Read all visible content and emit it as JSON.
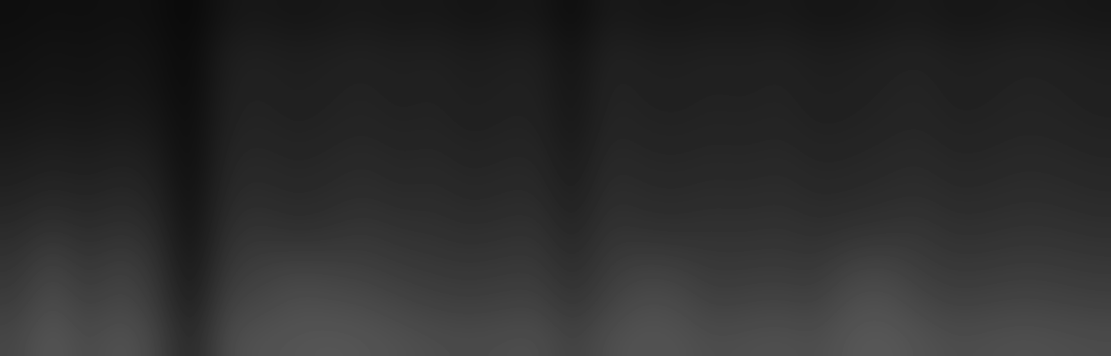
{
  "chart_data": {
    "type": "heatmap",
    "color": "gray",
    "tick_labels": false,
    "grid": false,
    "color_range": [
      0,
      255
    ],
    "cells": [
      [
        14,
        16,
        15,
        17,
        15,
        8,
        22,
        24,
        21,
        23,
        25,
        22,
        24,
        20,
        22,
        23,
        12,
        26,
        23,
        22,
        24,
        23,
        25,
        21,
        22,
        24,
        26,
        22,
        23,
        25,
        24,
        22
      ],
      [
        17,
        20,
        18,
        21,
        18,
        10,
        30,
        32,
        29,
        31,
        33,
        30,
        32,
        28,
        30,
        31,
        18,
        34,
        31,
        30,
        32,
        31,
        33,
        29,
        30,
        32,
        34,
        30,
        31,
        33,
        32,
        30
      ],
      [
        19,
        22,
        20,
        23,
        20,
        10,
        32,
        34,
        31,
        33,
        35,
        32,
        34,
        30,
        32,
        33,
        20,
        36,
        33,
        32,
        34,
        33,
        35,
        31,
        32,
        34,
        36,
        32,
        33,
        35,
        34,
        32
      ],
      [
        23,
        26,
        24,
        27,
        24,
        12,
        34,
        36,
        33,
        35,
        37,
        34,
        36,
        32,
        34,
        35,
        22,
        38,
        35,
        34,
        36,
        35,
        37,
        33,
        34,
        36,
        38,
        34,
        35,
        37,
        36,
        34
      ],
      [
        29,
        33,
        30,
        34,
        30,
        12,
        38,
        40,
        37,
        39,
        42,
        38,
        40,
        36,
        38,
        39,
        26,
        42,
        39,
        38,
        40,
        39,
        41,
        37,
        38,
        40,
        42,
        38,
        39,
        41,
        40,
        38
      ],
      [
        35,
        40,
        36,
        41,
        36,
        14,
        42,
        44,
        41,
        43,
        46,
        42,
        44,
        40,
        42,
        43,
        30,
        46,
        43,
        42,
        44,
        43,
        45,
        41,
        42,
        44,
        46,
        42,
        43,
        45,
        44,
        42
      ],
      [
        43,
        52,
        44,
        50,
        44,
        16,
        48,
        52,
        47,
        50,
        54,
        50,
        49,
        46,
        48,
        50,
        36,
        52,
        49,
        48,
        50,
        49,
        51,
        47,
        50,
        52,
        54,
        48,
        49,
        51,
        50,
        48
      ],
      [
        52,
        68,
        53,
        64,
        52,
        20,
        56,
        62,
        66,
        64,
        62,
        58,
        56,
        54,
        56,
        57,
        44,
        58,
        64,
        62,
        56,
        57,
        58,
        55,
        66,
        68,
        60,
        56,
        57,
        59,
        58,
        56
      ],
      [
        60,
        78,
        62,
        72,
        60,
        25,
        66,
        70,
        78,
        76,
        74,
        68,
        64,
        62,
        64,
        66,
        52,
        66,
        76,
        74,
        64,
        66,
        68,
        64,
        78,
        80,
        70,
        64,
        66,
        68,
        66,
        64
      ],
      [
        70,
        88,
        72,
        84,
        70,
        35,
        76,
        82,
        84,
        86,
        84,
        80,
        76,
        74,
        76,
        78,
        64,
        78,
        84,
        82,
        76,
        78,
        80,
        76,
        86,
        88,
        82,
        76,
        78,
        80,
        78,
        76
      ]
    ]
  }
}
